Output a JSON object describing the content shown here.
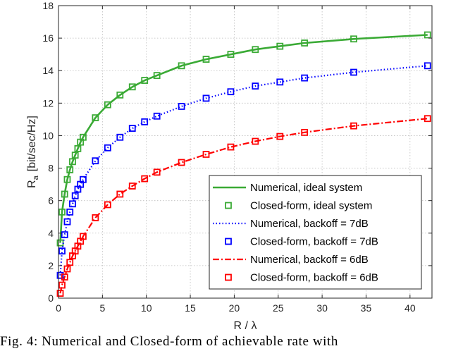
{
  "chart_data": {
    "type": "line",
    "xlabel": "R / λ",
    "ylabel_main": "R",
    "ylabel_sub": "a",
    "ylabel_unit": "[bit/sec/Hz]",
    "xlim": [
      0,
      42.5
    ],
    "ylim": [
      0,
      18
    ],
    "xticks": [
      0,
      5,
      10,
      15,
      20,
      25,
      30,
      35,
      40
    ],
    "yticks": [
      0,
      2,
      4,
      6,
      8,
      10,
      12,
      14,
      16,
      18
    ],
    "grid": true,
    "legend_position": "bottom-right",
    "series": [
      {
        "name": "Numerical, ideal system",
        "color": "#3aaa35",
        "style": "solid",
        "x": [
          0.2,
          0.4,
          0.7,
          1.0,
          1.3,
          1.6,
          1.9,
          2.2,
          2.5,
          2.8,
          4.2,
          5.6,
          7.0,
          8.4,
          9.8,
          11.2,
          14.0,
          16.8,
          19.6,
          22.4,
          25.2,
          28.0,
          33.6,
          42.0
        ],
        "y": [
          3.4,
          5.3,
          6.4,
          7.3,
          7.9,
          8.4,
          8.8,
          9.2,
          9.6,
          9.9,
          11.1,
          11.9,
          12.5,
          13.0,
          13.4,
          13.7,
          14.3,
          14.7,
          15.0,
          15.3,
          15.5,
          15.7,
          15.95,
          16.2
        ]
      },
      {
        "name": "Closed-form, ideal system",
        "color": "#3aaa35",
        "style": "marker",
        "x": [
          0.2,
          0.4,
          0.7,
          1.0,
          1.3,
          1.6,
          1.9,
          2.2,
          2.5,
          2.8,
          4.2,
          5.6,
          7.0,
          8.4,
          9.8,
          11.2,
          14.0,
          16.8,
          19.6,
          22.4,
          25.2,
          28.0,
          33.6,
          42.0
        ],
        "y": [
          3.4,
          5.3,
          6.4,
          7.3,
          7.9,
          8.4,
          8.8,
          9.2,
          9.6,
          9.9,
          11.1,
          11.9,
          12.5,
          13.0,
          13.4,
          13.7,
          14.3,
          14.7,
          15.0,
          15.3,
          15.5,
          15.7,
          15.95,
          16.2
        ]
      },
      {
        "name": "Numerical, backoff = 7dB",
        "color": "#0000ff",
        "style": "dotted",
        "x": [
          0.2,
          0.4,
          0.7,
          1.0,
          1.3,
          1.6,
          1.9,
          2.2,
          2.5,
          2.8,
          4.2,
          5.6,
          7.0,
          8.4,
          9.8,
          11.2,
          14.0,
          16.8,
          19.6,
          22.4,
          25.2,
          28.0,
          33.6,
          42.0
        ],
        "y": [
          1.4,
          2.9,
          3.9,
          4.7,
          5.3,
          5.8,
          6.3,
          6.7,
          7.0,
          7.3,
          8.45,
          9.25,
          9.9,
          10.45,
          10.85,
          11.2,
          11.8,
          12.3,
          12.7,
          13.05,
          13.3,
          13.55,
          13.9,
          14.3
        ]
      },
      {
        "name": "Closed-form, backoff = 7dB",
        "color": "#0000ff",
        "style": "marker",
        "x": [
          0.2,
          0.4,
          0.7,
          1.0,
          1.3,
          1.6,
          1.9,
          2.2,
          2.5,
          2.8,
          4.2,
          5.6,
          7.0,
          8.4,
          9.8,
          11.2,
          14.0,
          16.8,
          19.6,
          22.4,
          25.2,
          28.0,
          33.6,
          42.0
        ],
        "y": [
          1.4,
          2.9,
          3.9,
          4.7,
          5.3,
          5.8,
          6.3,
          6.7,
          7.0,
          7.3,
          8.45,
          9.25,
          9.9,
          10.45,
          10.85,
          11.2,
          11.8,
          12.3,
          12.7,
          13.05,
          13.3,
          13.55,
          13.9,
          14.3
        ]
      },
      {
        "name": "Numerical, backoff = 6dB",
        "color": "#ff0000",
        "style": "dashdot",
        "x": [
          0.2,
          0.4,
          0.7,
          1.0,
          1.3,
          1.6,
          1.9,
          2.2,
          2.5,
          2.8,
          4.2,
          5.6,
          7.0,
          8.4,
          9.8,
          11.2,
          14.0,
          16.8,
          19.6,
          22.4,
          25.2,
          28.0,
          33.6,
          42.0
        ],
        "y": [
          0.3,
          0.8,
          1.3,
          1.8,
          2.2,
          2.6,
          2.9,
          3.2,
          3.5,
          3.8,
          4.95,
          5.75,
          6.4,
          6.9,
          7.35,
          7.75,
          8.35,
          8.85,
          9.3,
          9.65,
          9.95,
          10.2,
          10.6,
          11.05
        ]
      },
      {
        "name": "Closed-form, backoff = 6dB",
        "color": "#ff0000",
        "style": "marker",
        "x": [
          0.2,
          0.4,
          0.7,
          1.0,
          1.3,
          1.6,
          1.9,
          2.2,
          2.5,
          2.8,
          4.2,
          5.6,
          7.0,
          8.4,
          9.8,
          11.2,
          14.0,
          16.8,
          19.6,
          22.4,
          25.2,
          28.0,
          33.6,
          42.0
        ],
        "y": [
          0.3,
          0.8,
          1.3,
          1.8,
          2.2,
          2.6,
          2.9,
          3.2,
          3.5,
          3.8,
          4.95,
          5.75,
          6.4,
          6.9,
          7.35,
          7.75,
          8.35,
          8.85,
          9.3,
          9.65,
          9.95,
          10.2,
          10.6,
          11.05
        ]
      }
    ]
  },
  "caption": "Fig. 4: Numerical and Closed-form of achievable rate with"
}
